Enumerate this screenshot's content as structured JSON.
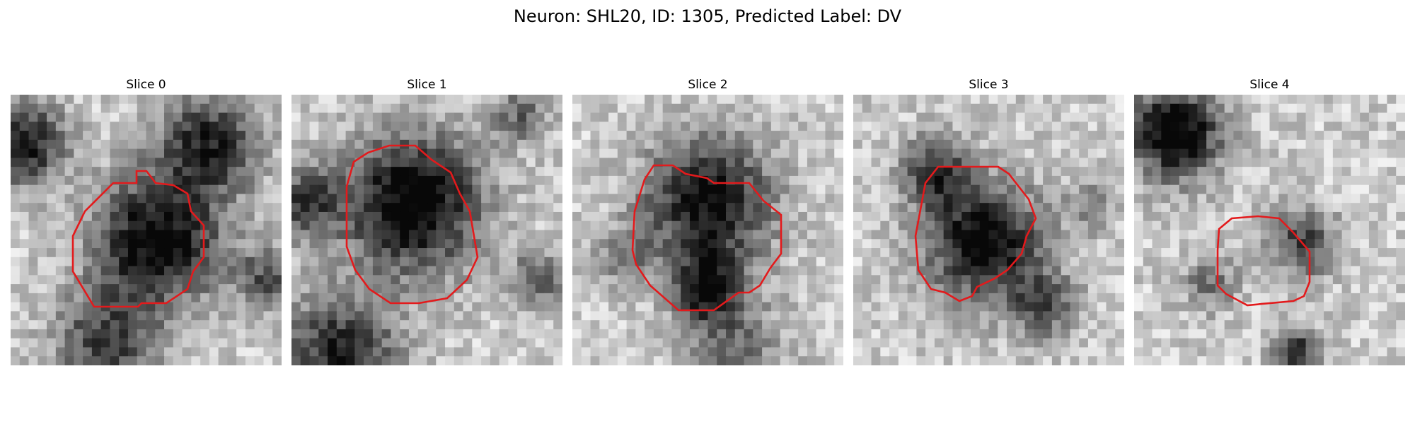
{
  "figure": {
    "title": "Neuron: SHL20, ID: 1305, Predicted Label: DV"
  },
  "slices": [
    {
      "title": "Slice 0"
    },
    {
      "title": "Slice 1"
    },
    {
      "title": "Slice 2"
    },
    {
      "title": "Slice 3"
    },
    {
      "title": "Slice 4"
    }
  ],
  "colors": {
    "outline": "#e31a1c",
    "colormap": "grayscale"
  },
  "icons": {
    "image": "grayscale-microscopy-patch",
    "overlay": "red-contour-outline"
  }
}
